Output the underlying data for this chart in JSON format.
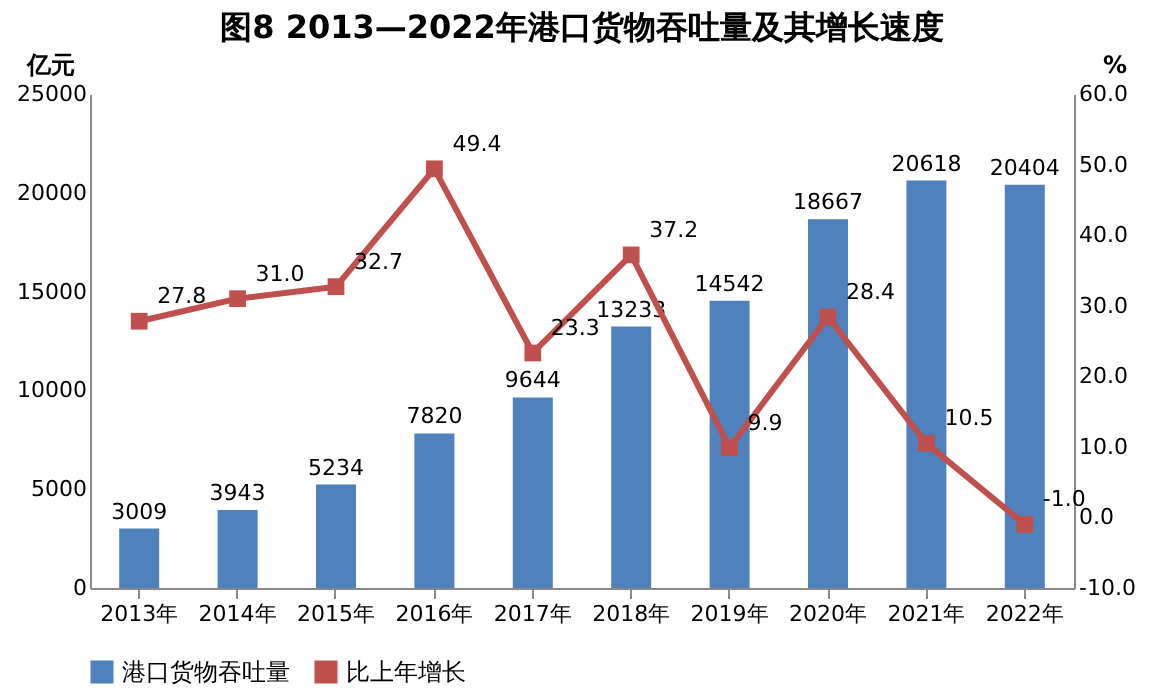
{
  "chart_data": {
    "type": "bar",
    "title": "图8  2013—2022年港口货物吞吐量及其增长速度",
    "categories": [
      "2013年",
      "2014年",
      "2015年",
      "2016年",
      "2017年",
      "2018年",
      "2019年",
      "2020年",
      "2021年",
      "2022年"
    ],
    "series": [
      {
        "name": "港口货物吞吐量",
        "color": "#4f81bd",
        "values": [
          3009,
          3943,
          5234,
          7820,
          9644,
          13233,
          14542,
          18667,
          20618,
          20404
        ]
      },
      {
        "name": "比上年增长",
        "type": "line",
        "axis": "y2",
        "color": "#c0504d",
        "marker": "square",
        "values": [
          27.8,
          31.0,
          32.7,
          49.4,
          23.3,
          37.2,
          9.9,
          28.4,
          10.5,
          -1.0
        ],
        "value_labels": [
          "27.8",
          "31.0",
          "32.7",
          "49.4",
          "23.3",
          "37.2",
          "9.9",
          "28.4",
          "10.5",
          "-1.0"
        ]
      }
    ],
    "ylabel": "亿元",
    "y2label": "%",
    "ylim": [
      0,
      25000
    ],
    "yticks": [
      0,
      5000,
      10000,
      15000,
      20000,
      25000
    ],
    "y2lim": [
      -10,
      60
    ],
    "y2ticks": [
      {
        "value": -10,
        "label": "-10.0"
      },
      {
        "value": 0,
        "label": "0.0"
      },
      {
        "value": 10,
        "label": "10.0"
      },
      {
        "value": 20,
        "label": "20.0"
      },
      {
        "value": 30,
        "label": "30.0"
      },
      {
        "value": 40,
        "label": "40.0"
      },
      {
        "value": 50,
        "label": "50.0"
      },
      {
        "value": 60,
        "label": "60.0"
      }
    ],
    "data_labels": true,
    "grid": false,
    "legend": "bottom"
  }
}
